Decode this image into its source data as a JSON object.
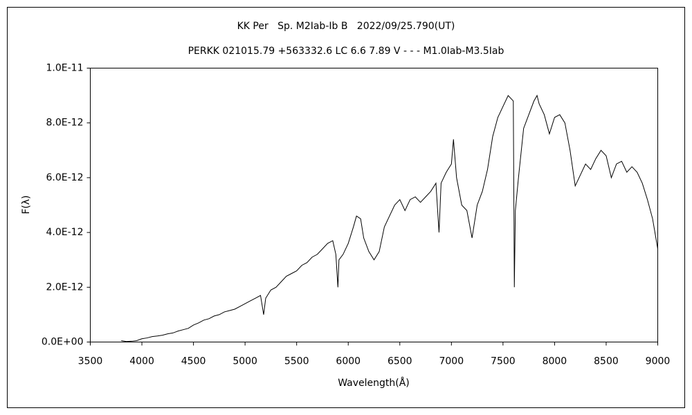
{
  "chart_data": {
    "type": "line",
    "title": "KK Per   Sp. M2Iab-Ib B   2022/09/25.790(UT)",
    "subtitle": "PERKK 021015.79 +563332.6 LC 6.6 7.89 V - - - M1.0Iab-M3.5Iab",
    "x_label": "Wavelength(Å)",
    "y_label": "F(λ)",
    "color": "#000000",
    "xlim": [
      3500,
      9000
    ],
    "xticks": [
      3500,
      4000,
      4500,
      5000,
      5500,
      6000,
      6500,
      7000,
      7500,
      8000,
      8500,
      9000
    ],
    "ylim": [
      0,
      1e-11
    ],
    "yticks": [
      {
        "value": 0,
        "label": "0.0E+00"
      },
      {
        "value": 2e-12,
        "label": "2.0E-12"
      },
      {
        "value": 4e-12,
        "label": "4.0E-12"
      },
      {
        "value": 6e-12,
        "label": "6.0E-12"
      },
      {
        "value": 8e-12,
        "label": "8.0E-12"
      },
      {
        "value": 1e-11,
        "label": "1.0E-11"
      }
    ],
    "x": [
      3800,
      3850,
      3900,
      3950,
      4000,
      4050,
      4100,
      4150,
      4200,
      4250,
      4300,
      4350,
      4400,
      4450,
      4500,
      4550,
      4600,
      4650,
      4700,
      4750,
      4800,
      4850,
      4900,
      4950,
      5000,
      5050,
      5100,
      5150,
      5180,
      5200,
      5250,
      5300,
      5350,
      5400,
      5450,
      5500,
      5550,
      5600,
      5650,
      5700,
      5750,
      5800,
      5850,
      5880,
      5900,
      5910,
      5950,
      6000,
      6050,
      6080,
      6120,
      6150,
      6200,
      6250,
      6300,
      6350,
      6400,
      6450,
      6500,
      6550,
      6600,
      6650,
      6700,
      6750,
      6800,
      6850,
      6880,
      6900,
      6950,
      7000,
      7020,
      7050,
      7100,
      7150,
      7200,
      7250,
      7300,
      7350,
      7400,
      7450,
      7500,
      7550,
      7600,
      7610,
      7620,
      7650,
      7700,
      7750,
      7800,
      7830,
      7850,
      7900,
      7950,
      8000,
      8050,
      8100,
      8150,
      8200,
      8250,
      8300,
      8350,
      8400,
      8450,
      8500,
      8550,
      8600,
      8650,
      8700,
      8750,
      8800,
      8850,
      8900,
      8950,
      9000
    ],
    "values": [
      5e-14,
      2e-14,
      3e-14,
      5e-14,
      1.2e-13,
      1.5e-13,
      2e-13,
      2.2e-13,
      2.5e-13,
      3e-13,
      3.3e-13,
      4e-13,
      4.5e-13,
      5e-13,
      6.2e-13,
      7e-13,
      8e-13,
      8.5e-13,
      9.5e-13,
      1e-12,
      1.1e-12,
      1.15e-12,
      1.2e-12,
      1.3e-12,
      1.4e-12,
      1.5e-12,
      1.6e-12,
      1.7e-12,
      1e-12,
      1.6e-12,
      1.9e-12,
      2e-12,
      2.2e-12,
      2.4e-12,
      2.5e-12,
      2.6e-12,
      2.8e-12,
      2.9e-12,
      3.1e-12,
      3.2e-12,
      3.4e-12,
      3.6e-12,
      3.7e-12,
      3.2e-12,
      2e-12,
      3e-12,
      3.2e-12,
      3.6e-12,
      4.2e-12,
      4.6e-12,
      4.5e-12,
      3.8e-12,
      3.3e-12,
      3e-12,
      3.3e-12,
      4.2e-12,
      4.6e-12,
      5e-12,
      5.2e-12,
      4.8e-12,
      5.2e-12,
      5.3e-12,
      5.1e-12,
      5.3e-12,
      5.5e-12,
      5.8e-12,
      4e-12,
      5.8e-12,
      6.2e-12,
      6.5e-12,
      7.4e-12,
      6e-12,
      5e-12,
      4.8e-12,
      3.8e-12,
      5e-12,
      5.5e-12,
      6.3e-12,
      7.5e-12,
      8.2e-12,
      8.6e-12,
      9e-12,
      8.8e-12,
      2e-12,
      4.8e-12,
      6e-12,
      7.8e-12,
      8.3e-12,
      8.8e-12,
      9e-12,
      8.7e-12,
      8.3e-12,
      7.6e-12,
      8.2e-12,
      8.3e-12,
      8e-12,
      7e-12,
      5.7e-12,
      6.1e-12,
      6.5e-12,
      6.3e-12,
      6.7e-12,
      7e-12,
      6.8e-12,
      6e-12,
      6.5e-12,
      6.6e-12,
      6.2e-12,
      6.4e-12,
      6.2e-12,
      5.8e-12,
      5.2e-12,
      4.5e-12,
      3.4e-12
    ]
  }
}
